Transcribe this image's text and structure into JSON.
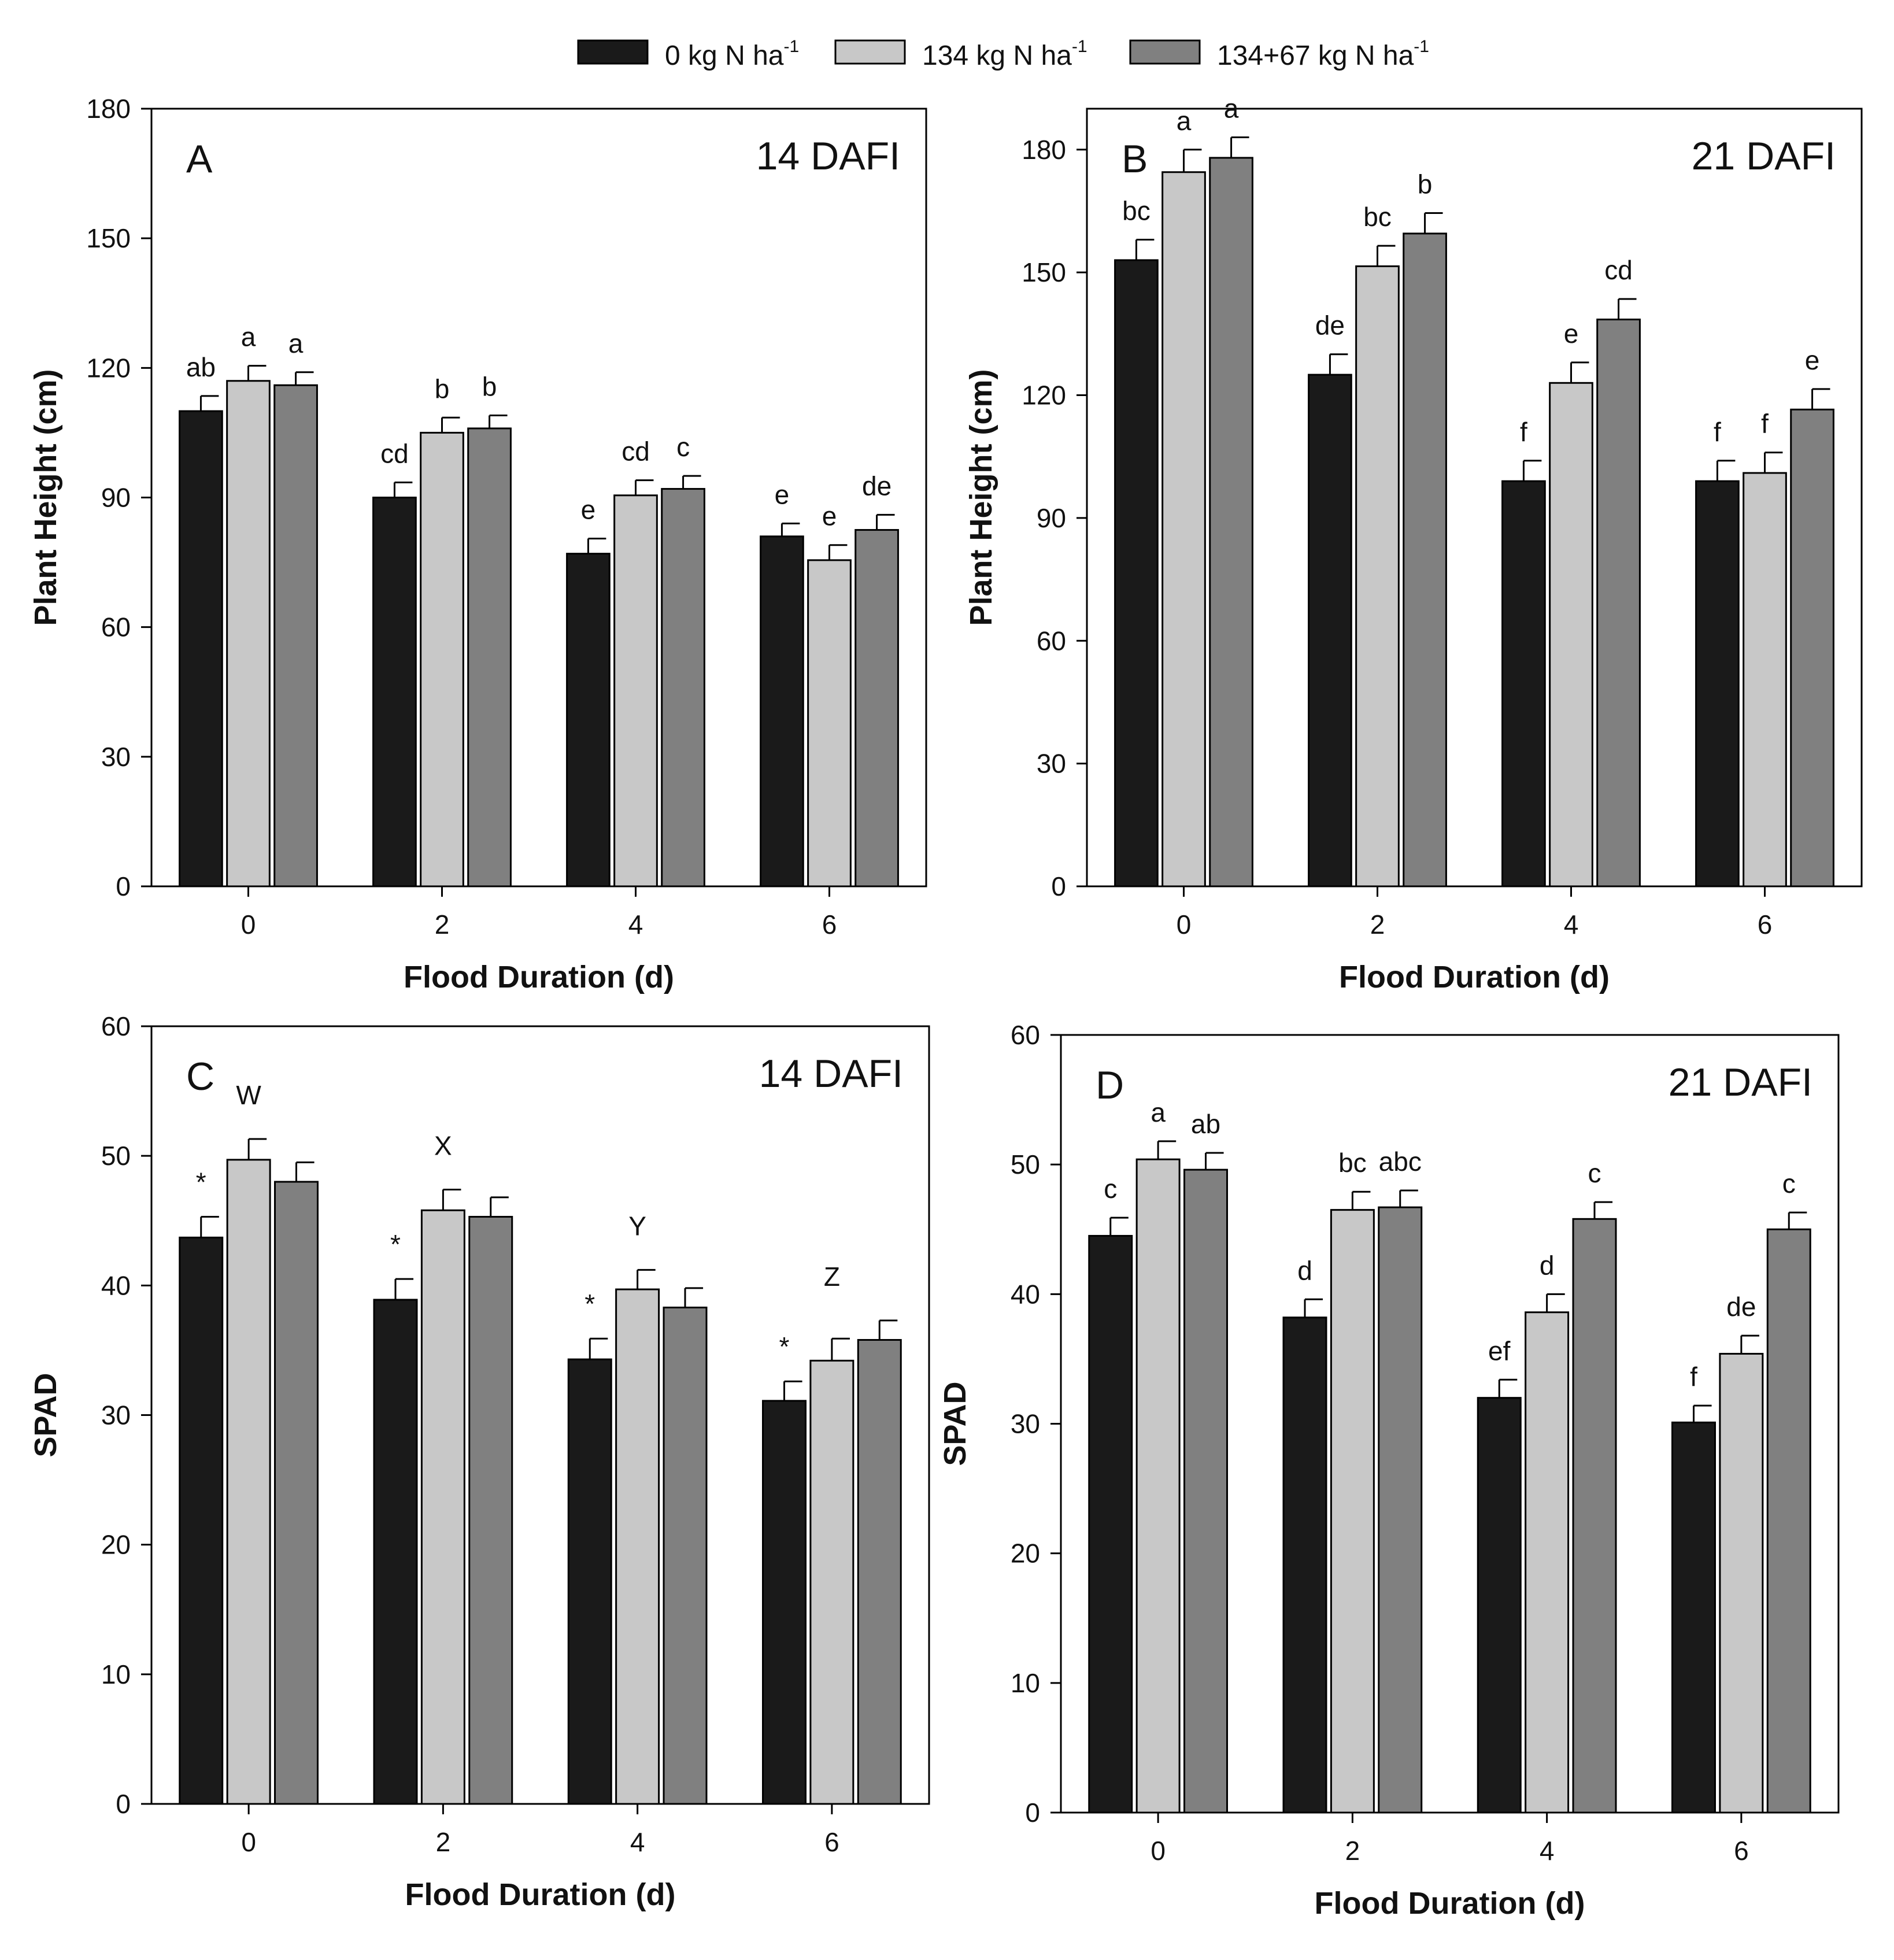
{
  "legend": {
    "series": [
      {
        "name": "0 kg N ha",
        "sup": "-1",
        "color": "#1a1a1a"
      },
      {
        "name": "134 kg N ha",
        "sup": "-1",
        "color": "#c8c8c8"
      },
      {
        "name": "134+67 kg N ha",
        "sup": "-1",
        "color": "#808080"
      }
    ]
  },
  "chart_data": [
    {
      "type": "bar",
      "panel": "A",
      "title": "14 DAFI",
      "xlabel": "Flood Duration (d)",
      "ylabel": "Plant Height (cm)",
      "categories": [
        "0",
        "2",
        "4",
        "6"
      ],
      "ylim": [
        0,
        180
      ],
      "yticks": [
        0,
        30,
        60,
        90,
        120,
        150,
        180
      ],
      "series": [
        {
          "name": "0 kg N ha-1",
          "values": [
            110,
            90,
            77,
            81
          ],
          "errors": [
            3.5,
            3.5,
            3.5,
            3
          ]
        },
        {
          "name": "134 kg N ha-1",
          "values": [
            117,
            105,
            90.5,
            75.5
          ],
          "errors": [
            3.5,
            3.5,
            3.5,
            3.5
          ]
        },
        {
          "name": "134+67 kg N ha-1",
          "values": [
            116,
            106,
            92,
            82.5
          ],
          "errors": [
            3,
            3,
            3,
            3.5
          ]
        }
      ],
      "group_labels": [],
      "bar_labels": [
        [
          "ab",
          "a",
          "a"
        ],
        [
          "cd",
          "b",
          "b"
        ],
        [
          "e",
          "cd",
          "c"
        ],
        [
          "e",
          "e",
          "de"
        ]
      ]
    },
    {
      "type": "bar",
      "panel": "B",
      "title": "21 DAFI",
      "xlabel": "Flood Duration (d)",
      "ylabel": "Plant Height (cm)",
      "categories": [
        "0",
        "2",
        "4",
        "6"
      ],
      "ylim": [
        0,
        190
      ],
      "yticks": [
        0,
        30,
        60,
        90,
        120,
        150,
        180
      ],
      "series": [
        {
          "name": "0 kg N ha-1",
          "values": [
            153,
            125,
            99,
            99
          ],
          "errors": [
            5,
            5,
            5,
            5
          ]
        },
        {
          "name": "134 kg N ha-1",
          "values": [
            174.5,
            151.5,
            123,
            101
          ],
          "errors": [
            5.5,
            5,
            5,
            5
          ]
        },
        {
          "name": "134+67 kg N ha-1",
          "values": [
            178,
            159.5,
            138.5,
            116.5
          ],
          "errors": [
            5,
            5,
            5,
            5
          ]
        }
      ],
      "group_labels": [],
      "bar_labels": [
        [
          "bc",
          "a",
          "a"
        ],
        [
          "de",
          "bc",
          "b"
        ],
        [
          "f",
          "e",
          "cd"
        ],
        [
          "f",
          "f",
          "e"
        ]
      ]
    },
    {
      "type": "bar",
      "panel": "C",
      "title": "14 DAFI",
      "xlabel": "Flood Duration (d)",
      "ylabel": "SPAD",
      "categories": [
        "0",
        "2",
        "4",
        "6"
      ],
      "ylim": [
        0,
        60
      ],
      "yticks": [
        0,
        10,
        20,
        30,
        40,
        50,
        60
      ],
      "series": [
        {
          "name": "0 kg N ha-1",
          "values": [
            43.7,
            38.9,
            34.3,
            31.1
          ],
          "errors": [
            1.6,
            1.6,
            1.6,
            1.5
          ]
        },
        {
          "name": "134 kg N ha-1",
          "values": [
            49.7,
            45.8,
            39.7,
            34.2
          ],
          "errors": [
            1.6,
            1.6,
            1.5,
            1.7
          ]
        },
        {
          "name": "134+67 kg N ha-1",
          "values": [
            48.0,
            45.3,
            38.3,
            35.8
          ],
          "errors": [
            1.5,
            1.5,
            1.5,
            1.5
          ]
        }
      ],
      "group_labels": [
        "W",
        "X",
        "Y",
        "Z"
      ],
      "bar_labels": [
        [
          "*",
          "",
          ""
        ],
        [
          "*",
          "",
          ""
        ],
        [
          "*",
          "",
          ""
        ],
        [
          "*",
          "",
          ""
        ]
      ]
    },
    {
      "type": "bar",
      "panel": "D",
      "title": "21 DAFI",
      "xlabel": "Flood Duration (d)",
      "ylabel": "SPAD",
      "categories": [
        "0",
        "2",
        "4",
        "6"
      ],
      "ylim": [
        0,
        60
      ],
      "yticks": [
        0,
        10,
        20,
        30,
        40,
        50,
        60
      ],
      "series": [
        {
          "name": "0 kg N ha-1",
          "values": [
            44.5,
            38.2,
            32.0,
            30.1
          ],
          "errors": [
            1.4,
            1.4,
            1.4,
            1.3
          ]
        },
        {
          "name": "134 kg N ha-1",
          "values": [
            50.4,
            46.5,
            38.6,
            35.4
          ],
          "errors": [
            1.4,
            1.4,
            1.4,
            1.4
          ]
        },
        {
          "name": "134+67 kg N ha-1",
          "values": [
            49.6,
            46.7,
            45.8,
            45.0
          ],
          "errors": [
            1.3,
            1.3,
            1.3,
            1.3
          ]
        }
      ],
      "group_labels": [],
      "bar_labels": [
        [
          "c",
          "a",
          "ab"
        ],
        [
          "d",
          "bc",
          "abc"
        ],
        [
          "ef",
          "d",
          "c"
        ],
        [
          "f",
          "de",
          "c"
        ]
      ]
    }
  ]
}
